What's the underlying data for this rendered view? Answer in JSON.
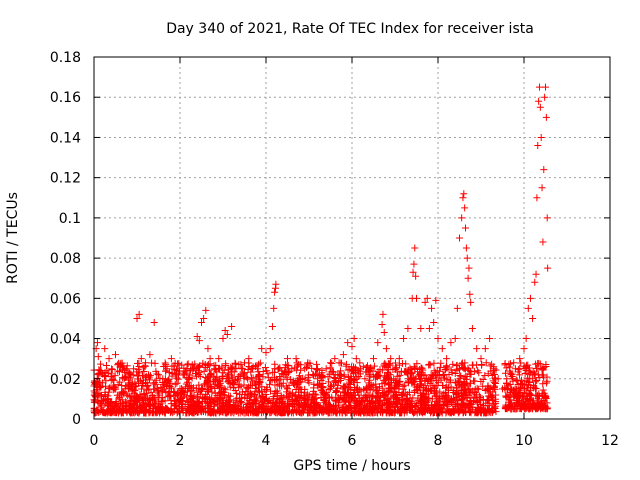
{
  "chart_data": {
    "type": "scatter",
    "title": "Day 340 of 2021, Rate Of TEC Index for receiver ista",
    "xlabel": "GPS time / hours",
    "ylabel": "ROTI / TECUs",
    "xlim": [
      0,
      12
    ],
    "ylim": [
      0,
      0.18
    ],
    "x_ticks": [
      0,
      2,
      4,
      6,
      8,
      10,
      12
    ],
    "x_tick_labels": [
      "0",
      "2",
      "4",
      "6",
      "8",
      "10",
      "12"
    ],
    "y_ticks": [
      0,
      0.02,
      0.04,
      0.06,
      0.08,
      0.1,
      0.12,
      0.14,
      0.16,
      0.18
    ],
    "y_tick_labels": [
      "0",
      "0.02",
      "0.04",
      "0.06",
      "0.08",
      "0.1",
      "0.12",
      "0.14",
      "0.16",
      "0.18"
    ],
    "grid": true,
    "marker": "+",
    "color": "#ff0000",
    "series": [
      {
        "name": "ROTI",
        "points": [
          [
            0.02,
            0.013
          ],
          [
            0.05,
            0.035
          ],
          [
            0.08,
            0.038
          ],
          [
            0.1,
            0.031
          ],
          [
            0.12,
            0.012
          ],
          [
            0.2,
            0.018
          ],
          [
            0.25,
            0.035
          ],
          [
            0.3,
            0.024
          ],
          [
            0.35,
            0.03
          ],
          [
            0.4,
            0.021
          ],
          [
            0.45,
            0.016
          ],
          [
            0.5,
            0.032
          ],
          [
            0.55,
            0.027
          ],
          [
            0.6,
            0.012
          ],
          [
            0.7,
            0.02
          ],
          [
            0.75,
            0.025
          ],
          [
            0.8,
            0.017
          ],
          [
            0.9,
            0.015
          ],
          [
            1.0,
            0.05
          ],
          [
            1.05,
            0.052
          ],
          [
            1.1,
            0.03
          ],
          [
            1.2,
            0.028
          ],
          [
            1.3,
            0.032
          ],
          [
            1.4,
            0.048
          ],
          [
            1.5,
            0.022
          ],
          [
            1.6,
            0.02
          ],
          [
            1.7,
            0.025
          ],
          [
            1.8,
            0.03
          ],
          [
            1.9,
            0.022
          ],
          [
            2.0,
            0.015
          ],
          [
            2.1,
            0.012
          ],
          [
            2.2,
            0.02
          ],
          [
            2.3,
            0.025
          ],
          [
            2.4,
            0.041
          ],
          [
            2.45,
            0.039
          ],
          [
            2.5,
            0.048
          ],
          [
            2.55,
            0.05
          ],
          [
            2.6,
            0.054
          ],
          [
            2.65,
            0.035
          ],
          [
            2.7,
            0.03
          ],
          [
            2.8,
            0.025
          ],
          [
            2.9,
            0.03
          ],
          [
            3.0,
            0.04
          ],
          [
            3.05,
            0.044
          ],
          [
            3.1,
            0.042
          ],
          [
            3.2,
            0.046
          ],
          [
            3.3,
            0.025
          ],
          [
            3.4,
            0.022
          ],
          [
            3.5,
            0.028
          ],
          [
            3.6,
            0.03
          ],
          [
            3.7,
            0.026
          ],
          [
            3.8,
            0.025
          ],
          [
            3.9,
            0.035
          ],
          [
            4.0,
            0.033
          ],
          [
            4.1,
            0.035
          ],
          [
            4.15,
            0.046
          ],
          [
            4.18,
            0.055
          ],
          [
            4.2,
            0.063
          ],
          [
            4.22,
            0.065
          ],
          [
            4.23,
            0.067
          ],
          [
            4.3,
            0.025
          ],
          [
            4.4,
            0.022
          ],
          [
            4.5,
            0.03
          ],
          [
            4.6,
            0.025
          ],
          [
            4.7,
            0.03
          ],
          [
            4.8,
            0.02
          ],
          [
            4.9,
            0.025
          ],
          [
            5.0,
            0.018
          ],
          [
            5.1,
            0.022
          ],
          [
            5.2,
            0.02
          ],
          [
            5.3,
            0.023
          ],
          [
            5.4,
            0.025
          ],
          [
            5.5,
            0.028
          ],
          [
            5.6,
            0.03
          ],
          [
            5.7,
            0.028
          ],
          [
            5.8,
            0.032
          ],
          [
            5.9,
            0.038
          ],
          [
            6.0,
            0.036
          ],
          [
            6.05,
            0.04
          ],
          [
            6.1,
            0.03
          ],
          [
            6.2,
            0.025
          ],
          [
            6.3,
            0.02
          ],
          [
            6.4,
            0.022
          ],
          [
            6.5,
            0.03
          ],
          [
            6.6,
            0.038
          ],
          [
            6.7,
            0.047
          ],
          [
            6.72,
            0.052
          ],
          [
            6.75,
            0.043
          ],
          [
            6.8,
            0.035
          ],
          [
            6.9,
            0.03
          ],
          [
            7.0,
            0.025
          ],
          [
            7.1,
            0.03
          ],
          [
            7.2,
            0.04
          ],
          [
            7.3,
            0.045
          ],
          [
            7.4,
            0.06
          ],
          [
            7.42,
            0.073
          ],
          [
            7.44,
            0.077
          ],
          [
            7.46,
            0.085
          ],
          [
            7.48,
            0.071
          ],
          [
            7.5,
            0.06
          ],
          [
            7.6,
            0.045
          ],
          [
            7.7,
            0.058
          ],
          [
            7.75,
            0.06
          ],
          [
            7.8,
            0.045
          ],
          [
            7.85,
            0.055
          ],
          [
            7.9,
            0.048
          ],
          [
            7.95,
            0.059
          ],
          [
            8.0,
            0.04
          ],
          [
            8.1,
            0.035
          ],
          [
            8.2,
            0.03
          ],
          [
            8.3,
            0.038
          ],
          [
            8.4,
            0.04
          ],
          [
            8.45,
            0.055
          ],
          [
            8.5,
            0.09
          ],
          [
            8.55,
            0.1
          ],
          [
            8.58,
            0.11
          ],
          [
            8.6,
            0.112
          ],
          [
            8.62,
            0.105
          ],
          [
            8.64,
            0.095
          ],
          [
            8.66,
            0.085
          ],
          [
            8.68,
            0.08
          ],
          [
            8.7,
            0.07
          ],
          [
            8.72,
            0.075
          ],
          [
            8.74,
            0.062
          ],
          [
            8.76,
            0.058
          ],
          [
            8.8,
            0.045
          ],
          [
            8.9,
            0.035
          ],
          [
            9.0,
            0.03
          ],
          [
            9.1,
            0.035
          ],
          [
            9.2,
            0.04
          ],
          [
            9.3,
            0.025
          ],
          [
            9.4,
            0.02
          ],
          [
            9.5,
            0.015
          ],
          [
            9.6,
            0.02
          ],
          [
            9.7,
            0.022
          ],
          [
            9.8,
            0.025
          ],
          [
            9.9,
            0.03
          ],
          [
            10.0,
            0.035
          ],
          [
            10.05,
            0.04
          ],
          [
            10.1,
            0.055
          ],
          [
            10.15,
            0.06
          ],
          [
            10.2,
            0.05
          ],
          [
            10.25,
            0.068
          ],
          [
            10.28,
            0.072
          ],
          [
            10.3,
            0.11
          ],
          [
            10.32,
            0.136
          ],
          [
            10.34,
            0.158
          ],
          [
            10.36,
            0.165
          ],
          [
            10.38,
            0.155
          ],
          [
            10.4,
            0.14
          ],
          [
            10.42,
            0.115
          ],
          [
            10.44,
            0.088
          ],
          [
            10.46,
            0.124
          ],
          [
            10.48,
            0.16
          ],
          [
            10.5,
            0.165
          ],
          [
            10.52,
            0.15
          ],
          [
            10.54,
            0.1
          ],
          [
            10.55,
            0.075
          ]
        ],
        "baseline_band": {
          "segments": [
            {
              "x_start": 0.0,
              "x_end": 9.35,
              "y_min": 0.003,
              "y_max": 0.028
            },
            {
              "x_start": 9.55,
              "x_end": 10.55,
              "y_min": 0.005,
              "y_max": 0.028
            }
          ],
          "density": "high"
        }
      }
    ]
  }
}
